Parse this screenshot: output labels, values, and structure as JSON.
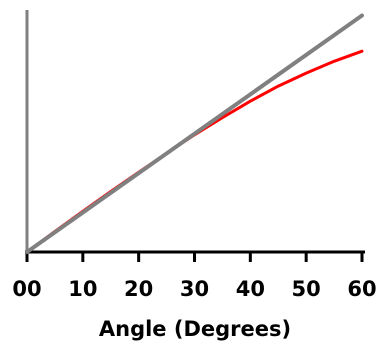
{
  "chart_data": {
    "type": "line",
    "title": "",
    "xlabel": "Angle (Degrees)",
    "ylabel": "",
    "xlim": [
      0,
      60
    ],
    "x_ticks": [
      0,
      10,
      20,
      30,
      40,
      50,
      60
    ],
    "x_tick_labels": [
      "00",
      "10",
      "20",
      "30",
      "40",
      "50",
      "60"
    ],
    "grid": false,
    "legend": "none",
    "series": [
      {
        "color": "#ff0000",
        "x": [
          0,
          5,
          10,
          15,
          20,
          25,
          30,
          35,
          40,
          45,
          50,
          55,
          60
        ],
        "y": [
          0,
          4.9,
          9.7,
          14.4,
          19.0,
          23.5,
          27.9,
          32.0,
          35.9,
          39.5,
          42.6,
          45.4,
          47.8
        ]
      },
      {
        "color": "#808080",
        "x": [
          0,
          60
        ],
        "y": [
          0,
          56.3
        ]
      }
    ]
  }
}
